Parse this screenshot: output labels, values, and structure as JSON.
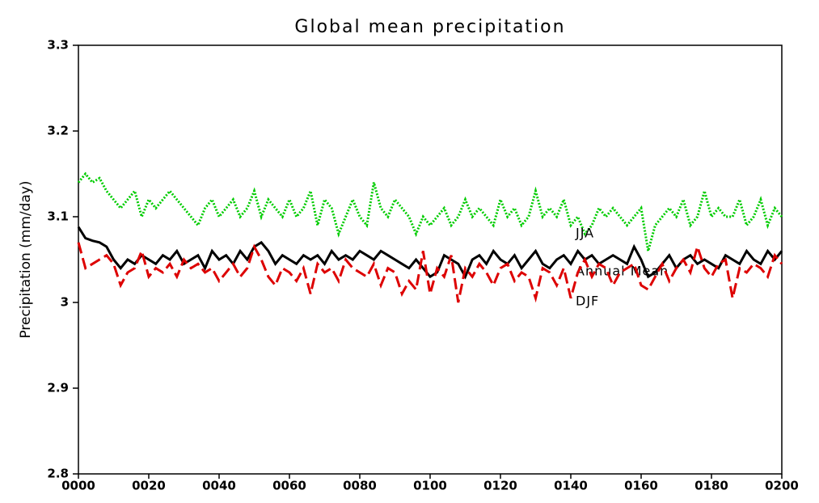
{
  "chart_data": {
    "type": "line",
    "title": "Global mean precipitation",
    "y_label": "Precipitation (mm/day)",
    "x": [
      0,
      2,
      4,
      6,
      8,
      10,
      12,
      14,
      16,
      18,
      20,
      22,
      24,
      26,
      28,
      30,
      32,
      34,
      36,
      38,
      40,
      42,
      44,
      46,
      48,
      50,
      52,
      54,
      56,
      58,
      60,
      62,
      64,
      66,
      68,
      70,
      72,
      74,
      76,
      78,
      80,
      82,
      84,
      86,
      88,
      90,
      92,
      94,
      96,
      98,
      100,
      102,
      104,
      106,
      108,
      110,
      112,
      114,
      116,
      118,
      120,
      122,
      124,
      126,
      128,
      130,
      132,
      134,
      136,
      138,
      140,
      142,
      144,
      146,
      148,
      150,
      152,
      154,
      156,
      158,
      160,
      162,
      164,
      166,
      168,
      170,
      172,
      174,
      176,
      178,
      180,
      182,
      184,
      186,
      188,
      190,
      192,
      194,
      196,
      198,
      200
    ],
    "series": [
      {
        "name": "JJA",
        "color": "#00cc00",
        "style": "dotted",
        "values": [
          3.14,
          3.15,
          3.14,
          3.145,
          3.13,
          3.12,
          3.11,
          3.12,
          3.13,
          3.1,
          3.12,
          3.11,
          3.12,
          3.13,
          3.12,
          3.11,
          3.1,
          3.09,
          3.11,
          3.12,
          3.1,
          3.11,
          3.12,
          3.1,
          3.11,
          3.13,
          3.1,
          3.12,
          3.11,
          3.1,
          3.12,
          3.1,
          3.11,
          3.13,
          3.09,
          3.12,
          3.11,
          3.08,
          3.1,
          3.12,
          3.1,
          3.09,
          3.14,
          3.11,
          3.1,
          3.12,
          3.11,
          3.1,
          3.08,
          3.1,
          3.09,
          3.1,
          3.11,
          3.09,
          3.1,
          3.12,
          3.1,
          3.11,
          3.1,
          3.09,
          3.12,
          3.1,
          3.11,
          3.09,
          3.1,
          3.13,
          3.1,
          3.11,
          3.1,
          3.12,
          3.09,
          3.1,
          3.08,
          3.09,
          3.11,
          3.1,
          3.11,
          3.1,
          3.09,
          3.1,
          3.11,
          3.06,
          3.09,
          3.1,
          3.11,
          3.1,
          3.12,
          3.09,
          3.1,
          3.13,
          3.1,
          3.11,
          3.1,
          3.1,
          3.12,
          3.09,
          3.1,
          3.12,
          3.09,
          3.11,
          3.1
        ]
      },
      {
        "name": "Annual Mean",
        "color": "#000000",
        "style": "solid",
        "values": [
          3.088,
          3.075,
          3.072,
          3.07,
          3.065,
          3.05,
          3.04,
          3.05,
          3.045,
          3.055,
          3.05,
          3.045,
          3.055,
          3.05,
          3.06,
          3.045,
          3.05,
          3.055,
          3.04,
          3.06,
          3.05,
          3.055,
          3.045,
          3.06,
          3.05,
          3.065,
          3.07,
          3.06,
          3.045,
          3.055,
          3.05,
          3.045,
          3.055,
          3.05,
          3.055,
          3.045,
          3.06,
          3.05,
          3.055,
          3.05,
          3.06,
          3.055,
          3.05,
          3.06,
          3.055,
          3.05,
          3.045,
          3.04,
          3.05,
          3.04,
          3.03,
          3.035,
          3.055,
          3.05,
          3.045,
          3.03,
          3.05,
          3.055,
          3.045,
          3.06,
          3.05,
          3.045,
          3.055,
          3.04,
          3.05,
          3.06,
          3.045,
          3.04,
          3.05,
          3.055,
          3.045,
          3.06,
          3.05,
          3.055,
          3.045,
          3.05,
          3.055,
          3.05,
          3.045,
          3.065,
          3.05,
          3.03,
          3.035,
          3.045,
          3.055,
          3.04,
          3.05,
          3.055,
          3.045,
          3.05,
          3.045,
          3.04,
          3.055,
          3.05,
          3.045,
          3.06,
          3.05,
          3.045,
          3.06,
          3.05,
          3.06
        ]
      },
      {
        "name": "DJF",
        "color": "#dd0000",
        "style": "dashed",
        "values": [
          3.07,
          3.04,
          3.045,
          3.05,
          3.055,
          3.045,
          3.02,
          3.035,
          3.04,
          3.06,
          3.03,
          3.04,
          3.035,
          3.045,
          3.03,
          3.05,
          3.04,
          3.045,
          3.035,
          3.04,
          3.025,
          3.035,
          3.045,
          3.03,
          3.04,
          3.065,
          3.05,
          3.03,
          3.02,
          3.04,
          3.035,
          3.025,
          3.04,
          3.01,
          3.045,
          3.035,
          3.04,
          3.025,
          3.05,
          3.04,
          3.035,
          3.03,
          3.045,
          3.02,
          3.04,
          3.035,
          3.01,
          3.025,
          3.015,
          3.06,
          3.01,
          3.04,
          3.03,
          3.055,
          3.0,
          3.04,
          3.03,
          3.045,
          3.035,
          3.02,
          3.04,
          3.045,
          3.025,
          3.035,
          3.03,
          3.005,
          3.04,
          3.035,
          3.02,
          3.04,
          3.005,
          3.035,
          3.05,
          3.03,
          3.045,
          3.04,
          3.02,
          3.035,
          3.04,
          3.045,
          3.02,
          3.015,
          3.03,
          3.045,
          3.025,
          3.04,
          3.05,
          3.035,
          3.065,
          3.04,
          3.03,
          3.045,
          3.05,
          3.005,
          3.04,
          3.035,
          3.045,
          3.04,
          3.03,
          3.055,
          3.045
        ]
      }
    ],
    "xlim": [
      0,
      200
    ],
    "xticks": [
      {
        "value": 0,
        "label": "0000"
      },
      {
        "value": 20,
        "label": "0020"
      },
      {
        "value": 40,
        "label": "0040"
      },
      {
        "value": 60,
        "label": "0060"
      },
      {
        "value": 80,
        "label": "0080"
      },
      {
        "value": 100,
        "label": "0100"
      },
      {
        "value": 120,
        "label": "0120"
      },
      {
        "value": 140,
        "label": "0140"
      },
      {
        "value": 160,
        "label": "0160"
      },
      {
        "value": 180,
        "label": "0180"
      },
      {
        "value": 200,
        "label": "0200"
      }
    ],
    "ylim": [
      2.8,
      3.3
    ],
    "yticks": [
      2.8,
      2.9,
      3,
      3.1,
      3.2,
      3.3
    ],
    "grid": false
  }
}
